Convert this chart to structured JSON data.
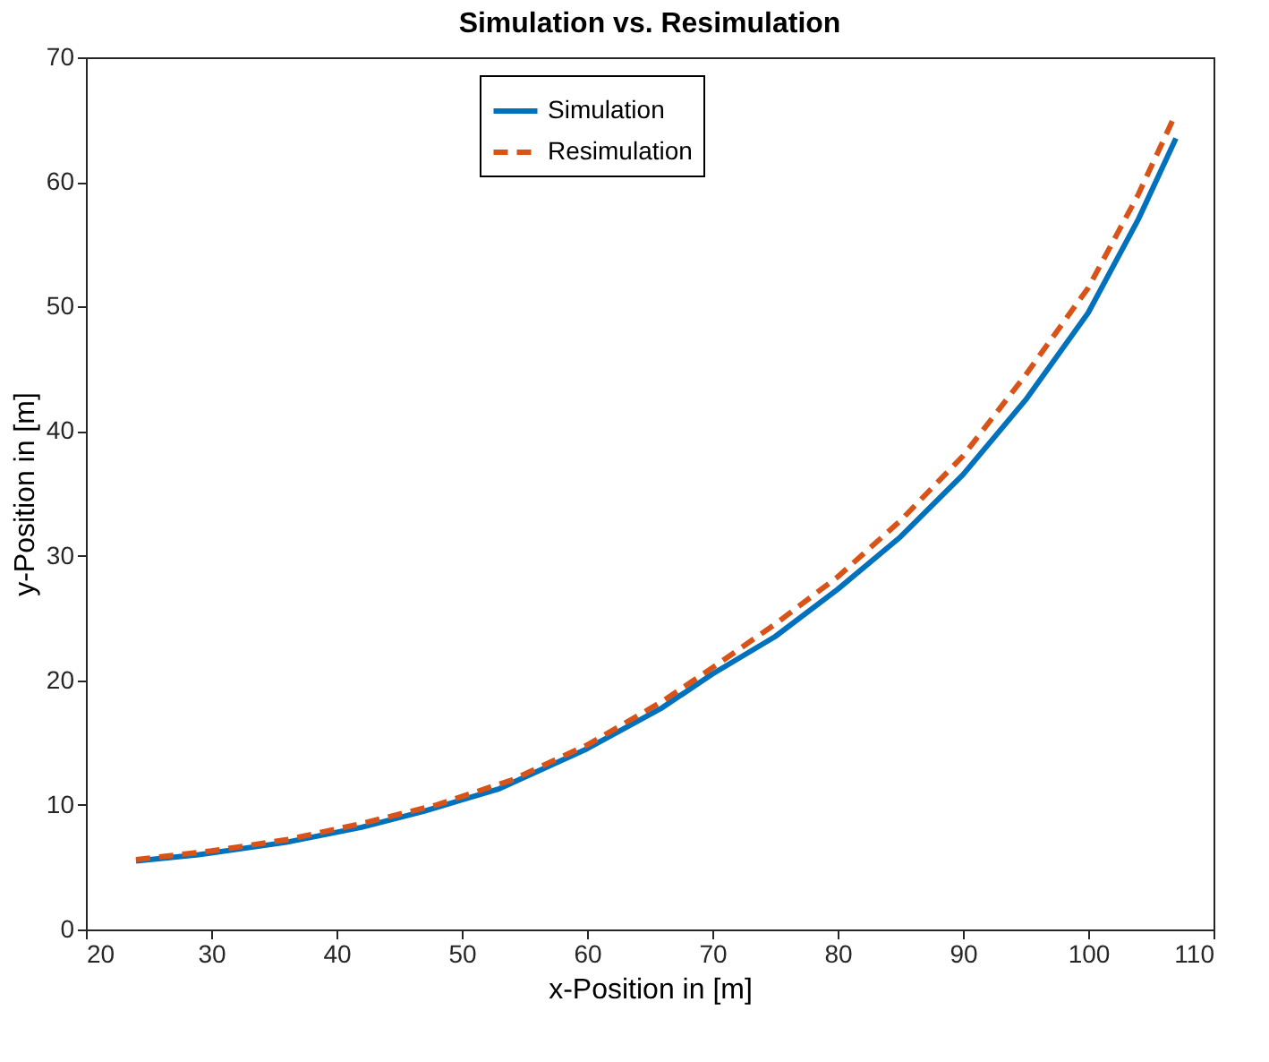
{
  "chart_data": {
    "type": "line",
    "title": "Simulation vs. Resimulation",
    "xlabel": "x-Position in [m]",
    "ylabel": "y-Position in [m]",
    "xlim": [
      20,
      110
    ],
    "xticks": [
      20,
      30,
      40,
      50,
      60,
      70,
      80,
      90,
      100,
      110
    ],
    "ylim": [
      0,
      70
    ],
    "yticks": [
      0,
      10,
      20,
      30,
      40,
      50,
      60,
      70
    ],
    "grid": false,
    "legend": "top",
    "marker": "none",
    "series": [
      {
        "name": "Simulation",
        "color": "#0072bd",
        "line_style": "solid",
        "x": [
          24,
          29,
          36,
          42,
          47,
          53,
          60,
          66,
          70,
          75,
          80,
          85,
          90,
          95,
          100,
          104,
          107
        ],
        "values": [
          5.5,
          6,
          7,
          8.2,
          9.5,
          11.3,
          14.5,
          17.8,
          20.5,
          23.5,
          27.3,
          31.5,
          36.5,
          42.5,
          49.5,
          57,
          63.5
        ]
      },
      {
        "name": "Resimulation",
        "color": "#d95319",
        "line_style": "dashed",
        "x": [
          24,
          30,
          36,
          42,
          48,
          54,
          60,
          66,
          70,
          75,
          80,
          85,
          90,
          95,
          100,
          104,
          107
        ],
        "values": [
          5.6,
          6.3,
          7.2,
          8.5,
          10,
          12,
          14.8,
          18.3,
          21,
          24.5,
          28.3,
          32.8,
          38,
          44.5,
          51.5,
          59,
          65.5
        ]
      }
    ]
  }
}
